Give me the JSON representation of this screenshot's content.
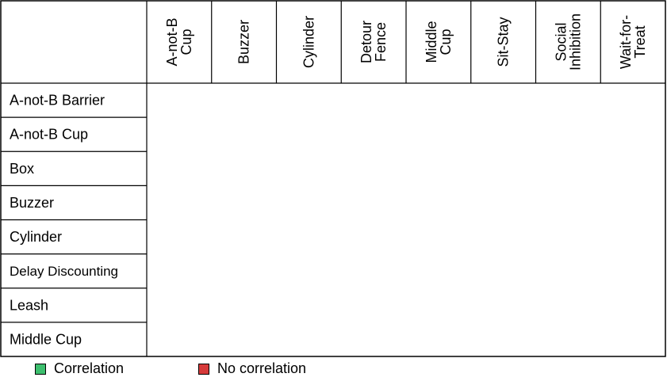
{
  "columns": [
    [
      "A-not-B",
      "Cup"
    ],
    [
      "Buzzer"
    ],
    [
      "Cylinder"
    ],
    [
      "Detour",
      "Fence"
    ],
    [
      "Middle",
      "Cup"
    ],
    [
      "Sit-Stay"
    ],
    [
      "Social",
      "Inhibition"
    ],
    [
      "Wait-for-",
      "Treat"
    ]
  ],
  "rows": [
    "A-not-B Barrier",
    "A-not-B Cup",
    "Box",
    "Buzzer",
    "Cylinder",
    "Delay Discounting",
    "Leash",
    "Middle Cup"
  ],
  "legend": {
    "correlation": {
      "label": "Correlation",
      "color": "#3dbf6e"
    },
    "no_correlation": {
      "label": "No correlation",
      "color": "#d63a3a"
    }
  }
}
